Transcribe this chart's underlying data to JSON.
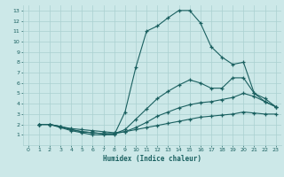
{
  "xlabel": "Humidex (Indice chaleur)",
  "bg_color": "#cce8e8",
  "grid_color": "#aad0d0",
  "line_color": "#1a6060",
  "xlim": [
    -0.5,
    23.5
  ],
  "ylim": [
    0,
    13.5
  ],
  "xticks": [
    0,
    1,
    2,
    3,
    4,
    5,
    6,
    7,
    8,
    9,
    10,
    11,
    12,
    13,
    14,
    15,
    16,
    17,
    18,
    19,
    20,
    21,
    22,
    23
  ],
  "yticks": [
    1,
    2,
    3,
    4,
    5,
    6,
    7,
    8,
    9,
    10,
    11,
    12,
    13
  ],
  "line1_x": [
    1,
    2,
    3,
    4,
    5,
    6,
    7,
    8,
    9,
    10,
    11,
    12,
    13,
    14,
    15,
    16,
    17,
    18,
    19,
    20,
    21,
    22,
    23
  ],
  "line1_y": [
    2,
    2,
    1.7,
    1.4,
    1.2,
    1.0,
    1.0,
    1.0,
    3.2,
    7.5,
    11.0,
    11.5,
    12.3,
    13.0,
    13.0,
    11.8,
    9.5,
    8.5,
    7.8,
    8.0,
    5.0,
    4.2,
    3.7
  ],
  "line2_x": [
    1,
    2,
    3,
    4,
    5,
    6,
    7,
    8,
    9,
    10,
    11,
    12,
    13,
    14,
    15,
    16,
    17,
    18,
    19,
    20,
    21,
    22,
    23
  ],
  "line2_y": [
    2,
    2,
    1.8,
    1.5,
    1.3,
    1.2,
    1.1,
    1.1,
    1.5,
    2.5,
    3.5,
    4.5,
    5.2,
    5.8,
    6.3,
    6.0,
    5.5,
    5.5,
    6.5,
    6.5,
    5.0,
    4.5,
    3.7
  ],
  "line3_x": [
    1,
    2,
    3,
    4,
    5,
    6,
    7,
    8,
    9,
    10,
    11,
    12,
    13,
    14,
    15,
    16,
    17,
    18,
    19,
    20,
    21,
    22,
    23
  ],
  "line3_y": [
    2,
    2,
    1.8,
    1.5,
    1.3,
    1.2,
    1.1,
    1.1,
    1.3,
    1.7,
    2.2,
    2.8,
    3.2,
    3.6,
    3.9,
    4.1,
    4.2,
    4.4,
    4.6,
    5.0,
    4.7,
    4.2,
    3.7
  ],
  "line4_x": [
    1,
    2,
    3,
    4,
    5,
    6,
    7,
    8,
    9,
    10,
    11,
    12,
    13,
    14,
    15,
    16,
    17,
    18,
    19,
    20,
    21,
    22,
    23
  ],
  "line4_y": [
    2,
    2,
    1.8,
    1.6,
    1.5,
    1.4,
    1.3,
    1.2,
    1.3,
    1.5,
    1.7,
    1.9,
    2.1,
    2.3,
    2.5,
    2.7,
    2.8,
    2.9,
    3.0,
    3.2,
    3.1,
    3.0,
    3.0
  ]
}
